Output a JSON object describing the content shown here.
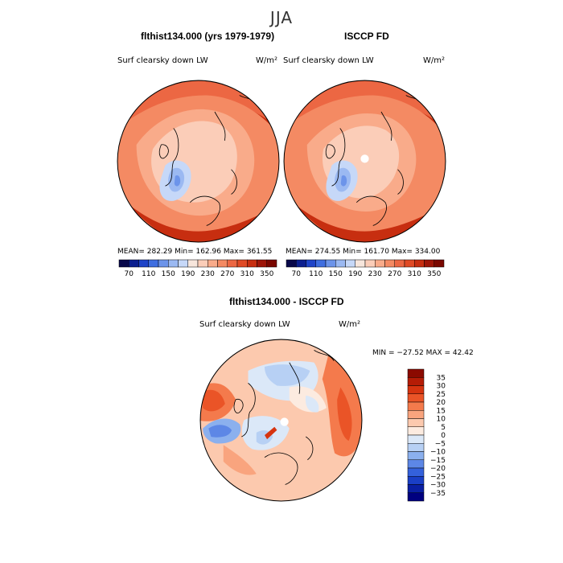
{
  "figure": {
    "title": "JJA"
  },
  "panels": [
    {
      "title": "flthist134.000 (yrs 1979-1979)",
      "variable": "Surf clearsky down LW",
      "units": "W/m²",
      "stats": "MEAN=  282.29   Min=  162.96   Max=  361.55"
    },
    {
      "title": "ISCCP FD",
      "variable": "Surf clearsky down LW",
      "units": "W/m²",
      "stats": "MEAN=  274.55   Min=  161.70   Max=  334.00"
    },
    {
      "title": "flthist134.000 - ISCCP FD",
      "variable": "Surf clearsky down LW",
      "units": "W/m²",
      "stats": "MIN =  −27.52  MAX =   42.42"
    }
  ],
  "chart_data": [
    {
      "type": "heatmap",
      "title": "flthist134.000 (yrs 1979-1979)",
      "projection": "north polar stereographic",
      "variable": "Surf clearsky down LW",
      "units": "W/m²",
      "mean": 282.29,
      "min": 162.96,
      "max": 361.55,
      "colorbar": {
        "ticks": [
          70,
          110,
          150,
          190,
          230,
          270,
          310,
          350
        ],
        "colors": [
          "#08084a",
          "#0c1f8f",
          "#1f44c8",
          "#3f6ee0",
          "#6c94ea",
          "#9bb9f2",
          "#c6d8f8",
          "#f7e6dc",
          "#fbcdb8",
          "#f9ab8a",
          "#f48a63",
          "#ec6743",
          "#e04a25",
          "#c72e10",
          "#9e1508",
          "#7a0700"
        ]
      }
    },
    {
      "type": "heatmap",
      "title": "ISCCP FD",
      "projection": "north polar stereographic",
      "variable": "Surf clearsky down LW",
      "units": "W/m²",
      "mean": 274.55,
      "min": 161.7,
      "max": 334.0,
      "colorbar": {
        "ticks": [
          70,
          110,
          150,
          190,
          230,
          270,
          310,
          350
        ],
        "colors": [
          "#08084a",
          "#0c1f8f",
          "#1f44c8",
          "#3f6ee0",
          "#6c94ea",
          "#9bb9f2",
          "#c6d8f8",
          "#f7e6dc",
          "#fbcdb8",
          "#f9ab8a",
          "#f48a63",
          "#ec6743",
          "#e04a25",
          "#c72e10",
          "#9e1508",
          "#7a0700"
        ]
      }
    },
    {
      "type": "heatmap",
      "title": "flthist134.000 - ISCCP FD",
      "projection": "north polar stereographic",
      "variable": "Surf clearsky down LW",
      "units": "W/m²",
      "min": -27.52,
      "max": 42.42,
      "colorbar": {
        "orientation": "vertical",
        "ticks": [
          35,
          30,
          25,
          20,
          15,
          10,
          5,
          0,
          -5,
          -10,
          -15,
          -20,
          -25,
          -30,
          -35
        ],
        "colors": [
          "#8b0a00",
          "#b51c06",
          "#d63410",
          "#ea5427",
          "#f47a4c",
          "#f9a47e",
          "#fcc9ae",
          "#fcebe0",
          "#dbe8f8",
          "#b7d0f4",
          "#8bb0ee",
          "#5d87e6",
          "#3461db",
          "#1a3fc6",
          "#0a1fa3",
          "#000080"
        ]
      }
    }
  ]
}
